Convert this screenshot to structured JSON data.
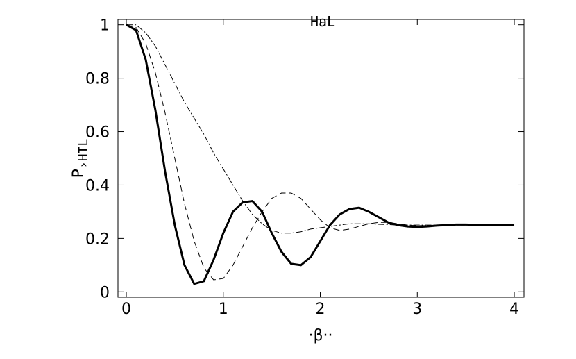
{
  "chart_data": {
    "type": "line",
    "title": "HaL",
    "x_label": "·β··",
    "y_label": "P",
    "y_label_sub": "›HTL",
    "x": [
      0,
      0.1,
      0.2,
      0.3,
      0.4,
      0.5,
      0.6,
      0.7,
      0.8,
      0.9,
      1.0,
      1.1,
      1.2,
      1.3,
      1.4,
      1.5,
      1.6,
      1.7,
      1.8,
      1.9,
      2.0,
      2.1,
      2.2,
      2.3,
      2.4,
      2.5,
      2.6,
      2.7,
      2.8,
      2.9,
      3.0,
      3.1,
      3.2,
      3.3,
      3.4,
      3.5,
      3.6,
      3.7,
      3.8,
      3.9,
      4.0
    ],
    "series": [
      {
        "color": "#000000",
        "width": 3,
        "dash": "none",
        "values": [
          1,
          0.98,
          0.87,
          0.68,
          0.45,
          0.25,
          0.1,
          0.03,
          0.04,
          0.12,
          0.22,
          0.3,
          0.335,
          0.34,
          0.3,
          0.22,
          0.15,
          0.105,
          0.1,
          0.13,
          0.19,
          0.25,
          0.29,
          0.31,
          0.315,
          0.3,
          0.28,
          0.26,
          0.25,
          0.245,
          0.243,
          0.245,
          0.248,
          0.25,
          0.252,
          0.252,
          0.251,
          0.25,
          0.25,
          0.25,
          0.25
        ]
      },
      {
        "color": "#000000",
        "width": 1,
        "dash": "9 5",
        "values": [
          1,
          0.99,
          0.93,
          0.82,
          0.67,
          0.5,
          0.33,
          0.19,
          0.09,
          0.045,
          0.05,
          0.1,
          0.17,
          0.24,
          0.3,
          0.35,
          0.37,
          0.37,
          0.35,
          0.31,
          0.27,
          0.24,
          0.23,
          0.235,
          0.245,
          0.255,
          0.26,
          0.26,
          0.255,
          0.25,
          0.248,
          0.248,
          0.249,
          0.25,
          0.25,
          0.25,
          0.25,
          0.25,
          0.25,
          0.25,
          0.25
        ]
      },
      {
        "color": "#000000",
        "width": 1,
        "dash": "9 3 2 3",
        "values": [
          1,
          1.0,
          0.97,
          0.92,
          0.85,
          0.78,
          0.71,
          0.65,
          0.59,
          0.52,
          0.46,
          0.4,
          0.34,
          0.29,
          0.255,
          0.23,
          0.22,
          0.22,
          0.225,
          0.235,
          0.24,
          0.245,
          0.25,
          0.255,
          0.255,
          0.255,
          0.253,
          0.252,
          0.25,
          0.25,
          0.25,
          0.25,
          0.25,
          0.25,
          0.25,
          0.25,
          0.25,
          0.25,
          0.25,
          0.25,
          0.25
        ]
      }
    ],
    "xlim": [
      -0.086,
      4.1
    ],
    "ylim": [
      -0.02,
      1.02
    ],
    "xticks": [
      0,
      1,
      2,
      3,
      4
    ],
    "yticks": [
      0,
      0.2,
      0.4,
      0.6,
      0.8,
      1
    ]
  }
}
